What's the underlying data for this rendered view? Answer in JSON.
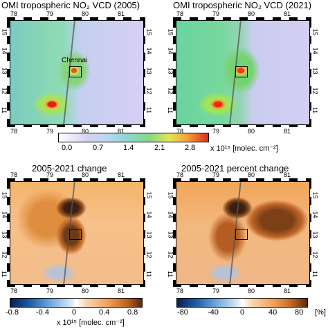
{
  "panels": [
    {
      "title": "OMI tropospheric NO₂ VCD (2005)",
      "top_ticks": [
        "78",
        "79",
        "80",
        "81"
      ],
      "bottom_ticks": [
        "78",
        "79",
        "80",
        "81"
      ],
      "right_ticks": [
        "15",
        "14",
        "13",
        "12",
        "11"
      ],
      "left_ticks": [
        "15",
        "14",
        "13",
        "12",
        "11"
      ],
      "label": "Chennai"
    },
    {
      "title": "OMI tropospheric NO₂ VCD (2021)",
      "top_ticks": [
        "78",
        "79",
        "80",
        "81"
      ],
      "bottom_ticks": [
        "78",
        "79",
        "80",
        "81"
      ],
      "right_ticks": [
        "15",
        "14",
        "13",
        "12",
        "11"
      ],
      "left_ticks": [
        "15",
        "14",
        "13",
        "12",
        "11"
      ]
    },
    {
      "title": "2005-2021 change",
      "top_ticks": [
        "78",
        "79",
        "80",
        "81"
      ],
      "bottom_ticks": [
        "78",
        "79",
        "80",
        "81"
      ],
      "right_ticks": [
        "15",
        "14",
        "13",
        "12",
        "11"
      ],
      "left_ticks": [
        "15",
        "14",
        "13",
        "12",
        "11"
      ]
    },
    {
      "title": "2005-2021 percent change",
      "top_ticks": [
        "78",
        "79",
        "80",
        "81"
      ],
      "bottom_ticks": [
        "78",
        "79",
        "80",
        "81"
      ],
      "right_ticks": [
        "15",
        "14",
        "13",
        "12",
        "11"
      ],
      "left_ticks": [
        "15",
        "14",
        "13",
        "12",
        "11"
      ]
    }
  ],
  "colorbar_top": {
    "ticks": [
      "0.0",
      "0.7",
      "1.4",
      "2.1",
      "2.8"
    ],
    "unit": "x 10¹⁵ [molec. cm⁻²]"
  },
  "colorbar_change": {
    "ticks": [
      "-0.8",
      "-0.4",
      "0",
      "0.4",
      "0.8"
    ],
    "unit": "x 10¹⁵ [molec. cm⁻²]"
  },
  "colorbar_percent": {
    "ticks": [
      "-80",
      "-40",
      "0",
      "40",
      "80"
    ],
    "unit": "[%]"
  }
}
